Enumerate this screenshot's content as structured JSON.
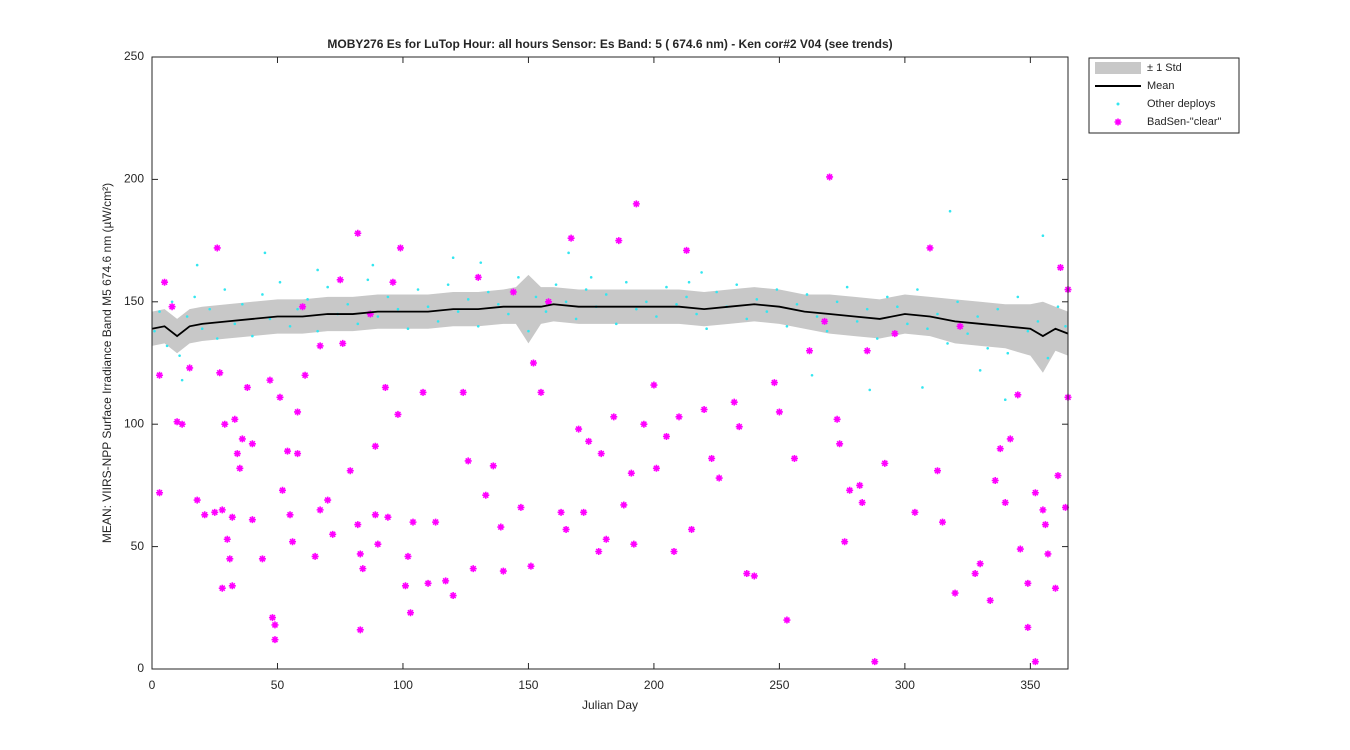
{
  "chart_data": {
    "type": "scatter",
    "title": "MOBY276   Es for LuTop  Hour: all hours  Sensor: Es Band: 5 ( 674.6 nm)   - Ken cor#2 V04 (see trends)",
    "x_label": "Julian Day",
    "y_label": "MEAN: VIIRS-NPP Surface Irradiance Band M5 674.6 nm (µW/cm²)",
    "xlim": [
      0,
      365
    ],
    "ylim": [
      0,
      250
    ],
    "xticks": [
      0,
      50,
      100,
      150,
      200,
      250,
      300,
      350
    ],
    "yticks": [
      0,
      50,
      100,
      150,
      200,
      250
    ],
    "grid": false,
    "legend": "outside-top-right",
    "band": {
      "name": "± 1 Std",
      "color": "#c8c8c8",
      "x": [
        0,
        5,
        10,
        15,
        20,
        30,
        40,
        50,
        60,
        70,
        80,
        90,
        100,
        110,
        120,
        130,
        140,
        145,
        150,
        155,
        160,
        170,
        180,
        190,
        200,
        210,
        220,
        230,
        240,
        250,
        260,
        270,
        280,
        290,
        300,
        310,
        320,
        330,
        340,
        350,
        355,
        360,
        365
      ],
      "upper": [
        146,
        147,
        143,
        147,
        148,
        149,
        150,
        151,
        151,
        152,
        152,
        153,
        153,
        153,
        154,
        154,
        155,
        156,
        161,
        156,
        156,
        155,
        155,
        155,
        155,
        155,
        154,
        155,
        156,
        155,
        153,
        153,
        152,
        151,
        153,
        152,
        151,
        150,
        149,
        149,
        150,
        148,
        146
      ],
      "lower": [
        132,
        133,
        129,
        133,
        134,
        135,
        136,
        137,
        137,
        138,
        138,
        139,
        139,
        139,
        140,
        140,
        141,
        141,
        133,
        141,
        142,
        141,
        141,
        141,
        141,
        141,
        140,
        141,
        142,
        141,
        139,
        137,
        136,
        135,
        137,
        136,
        133,
        132,
        131,
        128,
        121,
        130,
        128
      ]
    },
    "mean": {
      "name": "Mean",
      "color": "#000000",
      "x": [
        0,
        5,
        10,
        15,
        20,
        30,
        40,
        50,
        60,
        70,
        80,
        90,
        100,
        110,
        120,
        130,
        140,
        145,
        150,
        155,
        160,
        170,
        180,
        190,
        200,
        210,
        220,
        230,
        240,
        250,
        260,
        270,
        280,
        290,
        300,
        310,
        320,
        330,
        340,
        350,
        355,
        360,
        365
      ],
      "values": [
        139,
        140,
        136,
        140,
        141,
        142,
        143,
        144,
        144,
        145,
        145,
        146,
        146,
        146,
        147,
        147,
        148,
        148,
        148,
        148,
        149,
        148,
        148,
        148,
        148,
        148,
        147,
        148,
        149,
        148,
        146,
        145,
        144,
        143,
        145,
        144,
        142,
        141,
        140,
        139,
        136,
        139,
        137
      ]
    },
    "series": [
      {
        "name": "Other deploys",
        "color": "#33e6f0",
        "x": [
          1,
          3,
          6,
          8,
          11,
          14,
          17,
          20,
          23,
          26,
          29,
          33,
          36,
          40,
          44,
          47,
          51,
          55,
          58,
          62,
          66,
          70,
          74,
          78,
          82,
          86,
          90,
          94,
          98,
          102,
          106,
          110,
          114,
          118,
          122,
          126,
          130,
          134,
          138,
          142,
          146,
          150,
          153,
          157,
          161,
          165,
          169,
          173,
          177,
          181,
          185,
          189,
          193,
          197,
          201,
          205,
          209,
          213,
          217,
          221,
          225,
          229,
          233,
          237,
          241,
          245,
          249,
          253,
          257,
          261,
          265,
          269,
          273,
          277,
          281,
          285,
          289,
          293,
          297,
          301,
          305,
          309,
          313,
          317,
          321,
          325,
          329,
          333,
          337,
          341,
          345,
          349,
          353,
          357,
          361,
          364,
          12,
          45,
          88,
          131,
          175,
          219,
          263,
          307,
          318,
          340,
          18,
          66,
          120,
          166,
          214,
          286,
          330,
          355
        ],
        "values": [
          138,
          146,
          132,
          150,
          128,
          144,
          152,
          139,
          147,
          135,
          155,
          141,
          149,
          136,
          153,
          143,
          158,
          140,
          147,
          151,
          138,
          156,
          145,
          149,
          141,
          159,
          144,
          152,
          147,
          139,
          155,
          148,
          142,
          157,
          146,
          151,
          140,
          154,
          149,
          145,
          160,
          138,
          152,
          146,
          157,
          150,
          143,
          155,
          148,
          153,
          141,
          158,
          147,
          150,
          144,
          156,
          149,
          152,
          145,
          139,
          154,
          148,
          157,
          143,
          151,
          146,
          155,
          140,
          149,
          153,
          144,
          138,
          150,
          156,
          142,
          147,
          135,
          152,
          148,
          141,
          155,
          139,
          145,
          133,
          150,
          137,
          144,
          131,
          147,
          129,
          152,
          138,
          142,
          127,
          148,
          140,
          118,
          170,
          165,
          166,
          160,
          162,
          120,
          115,
          187,
          110,
          165,
          163,
          168,
          170,
          158,
          114,
          122,
          177
        ]
      },
      {
        "name": "BadSen-\"clear\"",
        "color": "#ff00ff",
        "x": [
          3,
          3,
          5,
          8,
          10,
          12,
          15,
          18,
          21,
          25,
          26,
          27,
          28,
          28,
          29,
          30,
          31,
          32,
          32,
          33,
          34,
          35,
          36,
          38,
          40,
          40,
          44,
          47,
          48,
          49,
          49,
          51,
          52,
          54,
          55,
          56,
          58,
          58,
          60,
          61,
          65,
          67,
          67,
          70,
          72,
          75,
          76,
          79,
          82,
          82,
          83,
          83,
          84,
          87,
          89,
          89,
          90,
          93,
          94,
          96,
          98,
          99,
          101,
          102,
          103,
          104,
          108,
          110,
          113,
          117,
          120,
          124,
          126,
          128,
          130,
          133,
          136,
          139,
          140,
          144,
          147,
          151,
          152,
          155,
          158,
          163,
          165,
          167,
          170,
          172,
          174,
          178,
          179,
          181,
          184,
          186,
          188,
          191,
          192,
          193,
          196,
          200,
          201,
          205,
          208,
          210,
          213,
          215,
          220,
          223,
          226,
          232,
          234,
          237,
          240,
          248,
          250,
          253,
          256,
          262,
          268,
          270,
          273,
          274,
          276,
          278,
          282,
          283,
          285,
          288,
          292,
          296,
          304,
          310,
          313,
          315,
          320,
          322,
          328,
          330,
          334,
          336,
          338,
          340,
          342,
          345,
          346,
          349,
          349,
          352,
          352,
          355,
          356,
          357,
          360,
          361,
          362,
          364,
          365,
          365
        ],
        "values": [
          72,
          120,
          158,
          148,
          101,
          100,
          123,
          69,
          63,
          64,
          172,
          121,
          65,
          33,
          100,
          53,
          45,
          62,
          34,
          102,
          88,
          82,
          94,
          115,
          92,
          61,
          45,
          118,
          21,
          12,
          18,
          111,
          73,
          89,
          63,
          52,
          88,
          105,
          148,
          120,
          46,
          65,
          132,
          69,
          55,
          159,
          133,
          81,
          59,
          178,
          47,
          16,
          41,
          145,
          91,
          63,
          51,
          115,
          62,
          158,
          104,
          172,
          34,
          46,
          23,
          60,
          113,
          35,
          60,
          36,
          30,
          113,
          85,
          41,
          160,
          71,
          83,
          58,
          40,
          154,
          66,
          42,
          125,
          113,
          150,
          64,
          57,
          176,
          98,
          64,
          93,
          48,
          88,
          53,
          103,
          175,
          67,
          80,
          51,
          190,
          100,
          116,
          82,
          95,
          48,
          103,
          171,
          57,
          106,
          86,
          78,
          109,
          99,
          39,
          38,
          117,
          105,
          20,
          86,
          130,
          142,
          201,
          102,
          92,
          52,
          73,
          75,
          68,
          130,
          3,
          84,
          137,
          64,
          172,
          81,
          60,
          31,
          140,
          39,
          43,
          28,
          77,
          90,
          68,
          94,
          112,
          49,
          35,
          17,
          72,
          3,
          65,
          59,
          47,
          33,
          79,
          164,
          66,
          111,
          155
        ]
      }
    ]
  }
}
